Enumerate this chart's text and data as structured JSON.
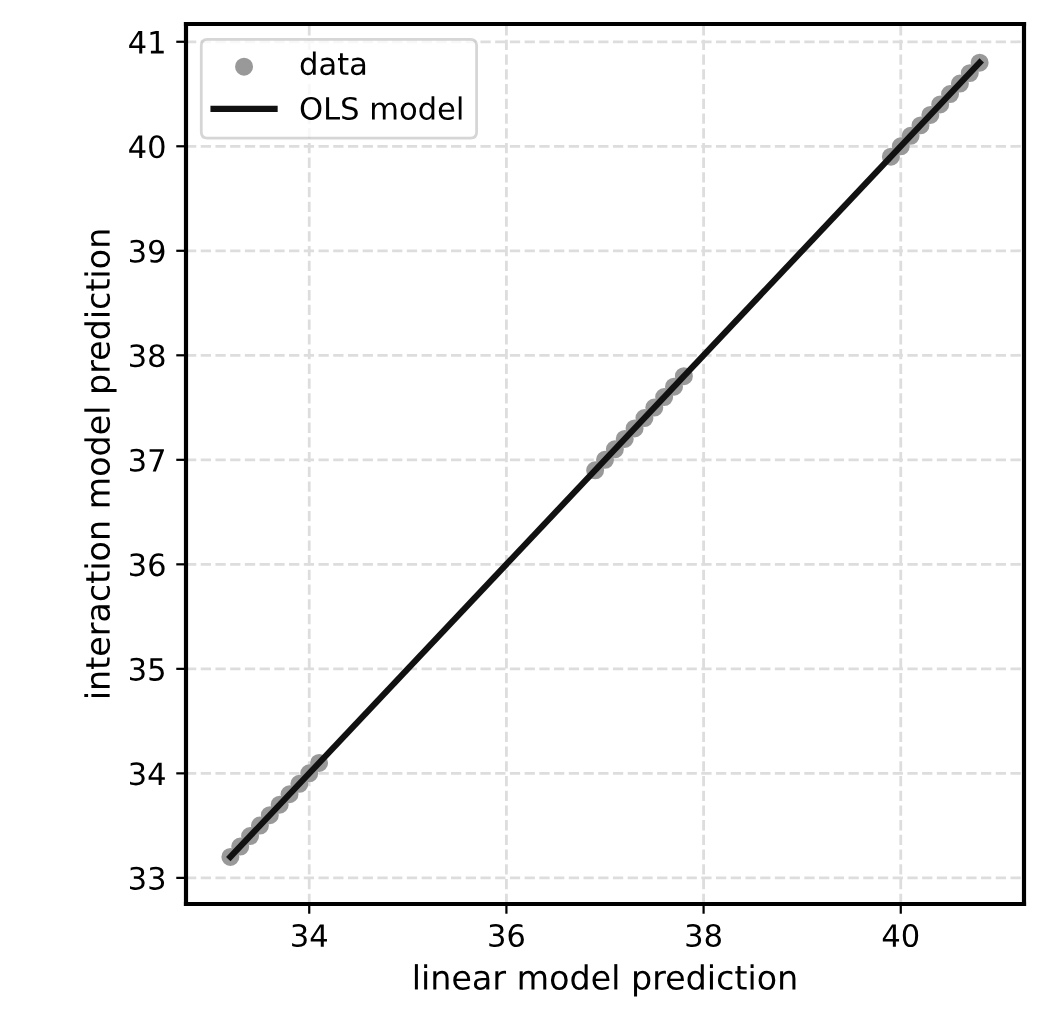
{
  "chart_data": {
    "type": "scatter",
    "xlabel": "linear model prediction",
    "ylabel": "interaction model prediction",
    "xlim": [
      32.75,
      41.25
    ],
    "ylim": [
      32.75,
      41.17
    ],
    "xticks": [
      34,
      36,
      38,
      40
    ],
    "yticks": [
      33,
      34,
      35,
      36,
      37,
      38,
      39,
      40,
      41
    ],
    "grid": true,
    "legend": "top left",
    "series": [
      {
        "name": "data",
        "marker": "circle",
        "color": "#999999",
        "x": [
          33.2,
          33.3,
          33.4,
          33.5,
          33.6,
          33.7,
          33.8,
          33.9,
          34.0,
          34.1,
          36.9,
          37.0,
          37.1,
          37.2,
          37.3,
          37.4,
          37.5,
          37.6,
          37.7,
          37.8,
          39.9,
          40.0,
          40.1,
          40.2,
          40.3,
          40.4,
          40.5,
          40.6,
          40.7,
          40.8
        ],
        "values": [
          33.2,
          33.3,
          33.4,
          33.5,
          33.6,
          33.7,
          33.8,
          33.9,
          34.0,
          34.1,
          36.9,
          37.0,
          37.1,
          37.2,
          37.3,
          37.4,
          37.5,
          37.6,
          37.7,
          37.8,
          39.9,
          40.0,
          40.1,
          40.2,
          40.3,
          40.4,
          40.5,
          40.6,
          40.7,
          40.8
        ]
      },
      {
        "name": "OLS model",
        "type": "line",
        "color": "#111111",
        "line_style": "solid",
        "x": [
          33.2,
          40.8
        ],
        "values": [
          33.2,
          40.8
        ]
      }
    ]
  }
}
